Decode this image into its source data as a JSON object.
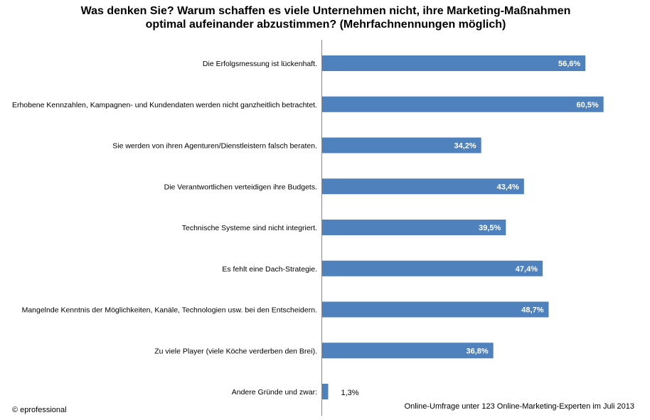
{
  "chart_data": {
    "type": "bar",
    "orientation": "horizontal",
    "title": "Was denken Sie? Warum schaffen es viele Unternehmen nicht, ihre Marketing-Maßnahmen optimal aufeinander abzustimmen? (Mehrfachnennungen möglich)",
    "title_lines": [
      "Was denken Sie? Warum schaffen es viele Unternehmen nicht, ihre Marketing-Maßnahmen",
      "optimal aufeinander abzustimmen? (Mehrfachnennungen möglich)"
    ],
    "categories": [
      "Die Erfolgsmessung ist lückenhaft.",
      "Erhobene Kennzahlen, Kampagnen- und Kundendaten werden nicht ganzheitlich betrachtet.",
      "Sie werden von ihren Agenturen/Dienstleistern falsch beraten.",
      "Die Verantwortlichen verteidigen ihre Budgets.",
      "Technische Systeme sind nicht integriert.",
      "Es fehlt eine Dach-Strategie.",
      "Mangelnde Kenntnis der Möglichkeiten, Kanäle, Technologien usw. bei den Entscheidern.",
      "Zu viele Player (viele Köche verderben den Brei).",
      "Andere Gründe und zwar:"
    ],
    "values": [
      56.6,
      60.5,
      34.2,
      43.4,
      39.5,
      47.4,
      48.7,
      36.8,
      1.3
    ],
    "value_labels": [
      "56,6%",
      "60,5%",
      "34,2%",
      "43,4%",
      "39,5%",
      "47,4%",
      "48,7%",
      "36,8%",
      "1,3%"
    ],
    "unit": "%",
    "xlabel": "",
    "ylabel": "",
    "xlim": [
      0,
      65
    ],
    "grid": false,
    "legend": "none",
    "bar_color": "#4f81bd"
  },
  "footer": {
    "copyright": "© eprofessional",
    "source": "Online-Umfrage unter 123 Online-Marketing-Experten im Juli 2013"
  }
}
